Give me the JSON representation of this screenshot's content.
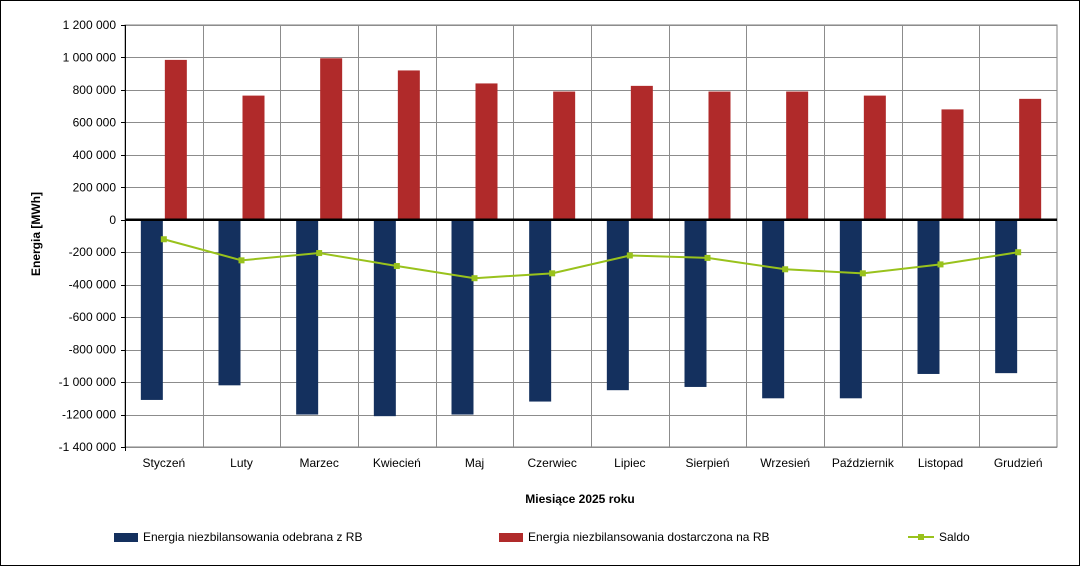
{
  "chart_data": {
    "type": "bar",
    "title": "",
    "xlabel": "Miesiące 2025  roku",
    "ylabel": "Energia [MWh]",
    "ylim": [
      -1400000,
      1200000
    ],
    "ytick_values": [
      1200000,
      1000000,
      800000,
      600000,
      400000,
      200000,
      0,
      -200000,
      -400000,
      -600000,
      -800000,
      -1000000,
      -1200000,
      -1400000
    ],
    "ytick_labels": [
      "1 200 000",
      "1 000 000",
      "800 000",
      "600 000",
      "400 000",
      "200 000",
      "0",
      "-200 000",
      "-400 000",
      "-600 000",
      "-800 000",
      "-1 000 000",
      "-1200 000",
      "-1 400 000"
    ],
    "grid": true,
    "legend_position": "bottom",
    "categories": [
      "Styczeń",
      "Luty",
      "Marzec",
      "Kwiecień",
      "Maj",
      "Czerwiec",
      "Lipiec",
      "Sierpień",
      "Wrzesień",
      "Październik",
      "Listopad",
      "Grudzień"
    ],
    "series": [
      {
        "name": "Energia niezbilansowania odebrana z RB",
        "type": "bar",
        "color": "#14305e",
        "values": [
          -1110000,
          -1020000,
          -1200000,
          -1210000,
          -1200000,
          -1120000,
          -1050000,
          -1030000,
          -1100000,
          -1100000,
          -950000,
          -945000
        ]
      },
      {
        "name": "Energia niezbilansowania dostarczona na RB",
        "type": "bar",
        "color": "#b02a2a",
        "values": [
          985000,
          765000,
          995000,
          920000,
          840000,
          790000,
          825000,
          790000,
          790000,
          765000,
          680000,
          745000
        ]
      },
      {
        "name": "Saldo",
        "type": "line",
        "color": "#99c21c",
        "values": [
          -120000,
          -250000,
          -205000,
          -285000,
          -360000,
          -330000,
          -220000,
          -235000,
          -305000,
          -330000,
          -275000,
          -200000
        ]
      }
    ]
  }
}
